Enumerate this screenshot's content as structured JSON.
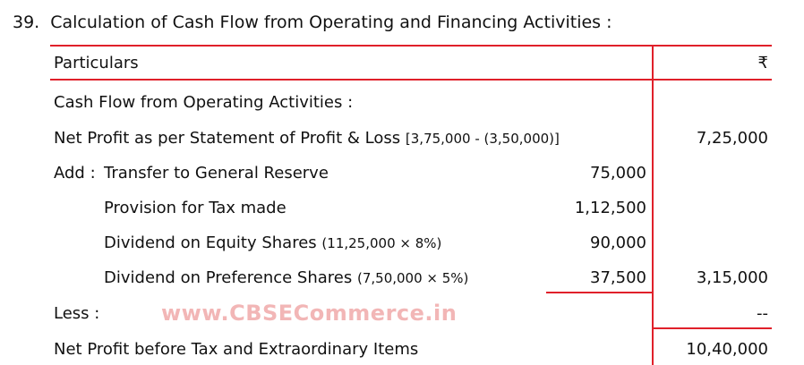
{
  "heading": {
    "number": "39.",
    "title": "Calculation of Cash Flow from Operating and Financing Activities :"
  },
  "table": {
    "header": {
      "particulars": "Particulars",
      "amount": "₹"
    },
    "section_title": "Cash Flow from Operating Activities :",
    "net_profit": {
      "label": "Net Profit as per Statement of Profit & Loss",
      "note": "[3,75,000 - (3,50,000)]",
      "amount": "7,25,000"
    },
    "add_prefix": "Add :",
    "add_items": [
      {
        "label": "Transfer to General Reserve",
        "note": "",
        "value": "75,000"
      },
      {
        "label": "Provision for Tax made",
        "note": "",
        "value": "1,12,500"
      },
      {
        "label": "Dividend on Equity Shares",
        "note": "(11,25,000 × 8%)",
        "value": "90,000"
      },
      {
        "label": "Dividend on Preference Shares",
        "note": "(7,50,000 × 5%)",
        "value": "37,500"
      }
    ],
    "add_total": "3,15,000",
    "less": {
      "label": "Less :",
      "amount": "--"
    },
    "net_profit_before_tax": {
      "label": "Net Profit before Tax and Extraordinary Items",
      "amount": "10,40,000"
    }
  },
  "watermark": "www.CBSECommerce.in",
  "colors": {
    "rule": "#e0202a",
    "watermark": "#f2b6b6",
    "text": "#111111"
  }
}
